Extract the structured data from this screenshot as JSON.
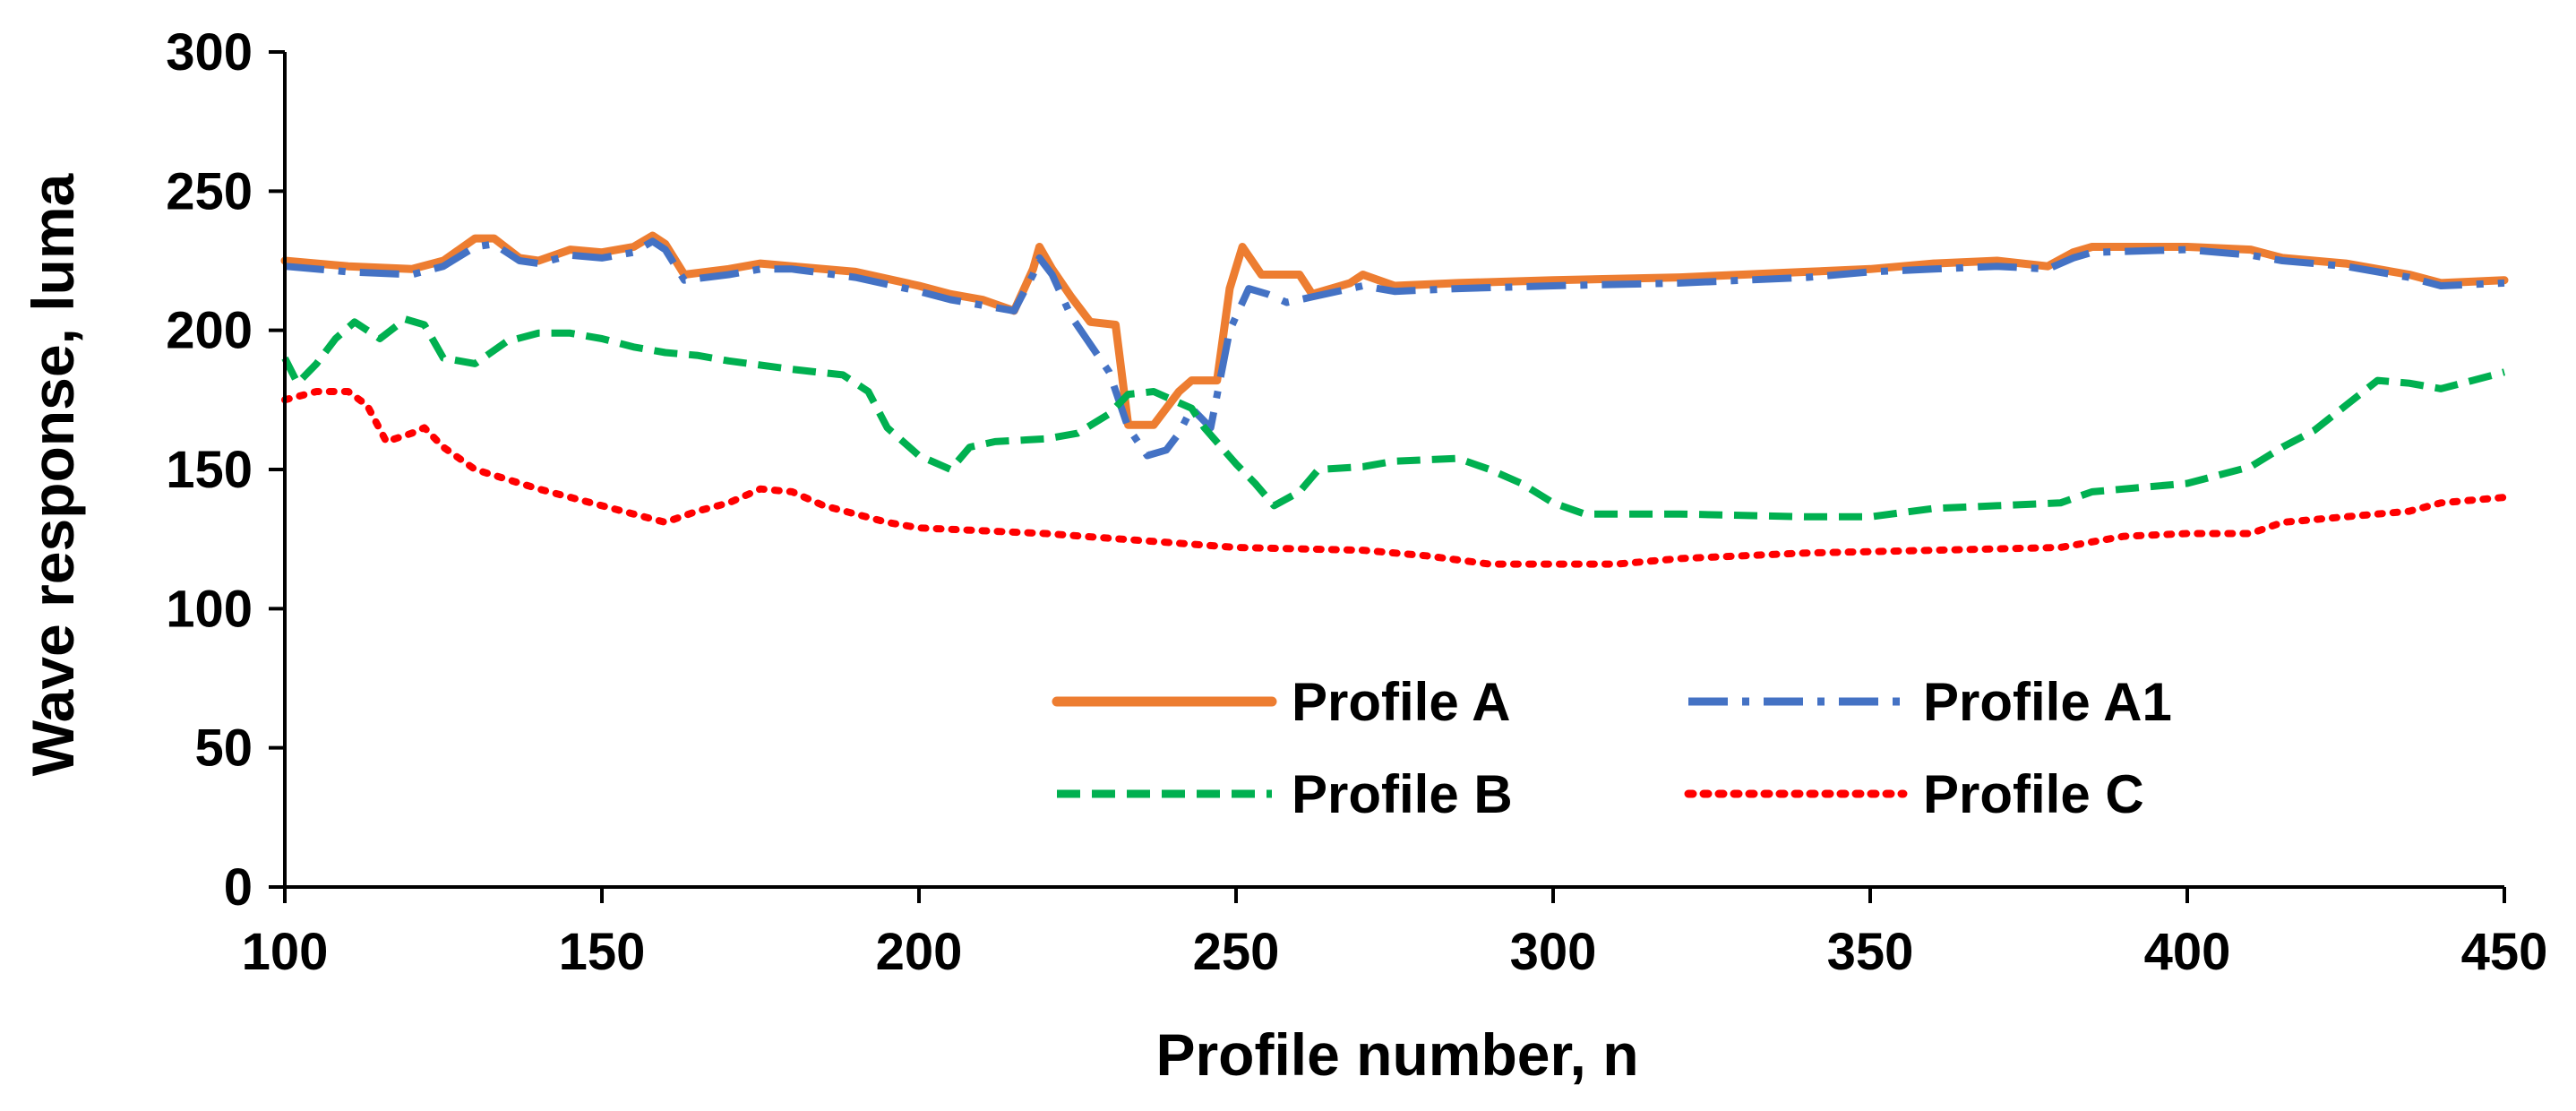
{
  "chart_data": {
    "type": "line",
    "title": "",
    "xlabel": "Profile number, n",
    "ylabel": "Wave response, luma",
    "xlim": [
      100,
      450
    ],
    "ylim": [
      0,
      300
    ],
    "xticks": [
      100,
      150,
      200,
      250,
      300,
      350,
      400,
      450
    ],
    "yticks": [
      0,
      50,
      100,
      150,
      200,
      250,
      300
    ],
    "grid": false,
    "legend_position": "lower-center-right",
    "series": [
      {
        "name": "Profile A",
        "color": "#ED7D31",
        "style": "solid",
        "points": [
          [
            100,
            225
          ],
          [
            110,
            223
          ],
          [
            120,
            222
          ],
          [
            125,
            225
          ],
          [
            130,
            233
          ],
          [
            133,
            233
          ],
          [
            137,
            226
          ],
          [
            140,
            225
          ],
          [
            145,
            229
          ],
          [
            150,
            228
          ],
          [
            155,
            230
          ],
          [
            158,
            234
          ],
          [
            160,
            231
          ],
          [
            163,
            220
          ],
          [
            170,
            222
          ],
          [
            175,
            224
          ],
          [
            180,
            223
          ],
          [
            190,
            221
          ],
          [
            200,
            216
          ],
          [
            205,
            213
          ],
          [
            210,
            211
          ],
          [
            215,
            207
          ],
          [
            218,
            222
          ],
          [
            219,
            230
          ],
          [
            221,
            222
          ],
          [
            224,
            212
          ],
          [
            227,
            203
          ],
          [
            231,
            202
          ],
          [
            233,
            166
          ],
          [
            237,
            166
          ],
          [
            241,
            178
          ],
          [
            243,
            182
          ],
          [
            247,
            182
          ],
          [
            249,
            215
          ],
          [
            251,
            230
          ],
          [
            254,
            220
          ],
          [
            260,
            220
          ],
          [
            262,
            213
          ],
          [
            268,
            217
          ],
          [
            270,
            220
          ],
          [
            275,
            216
          ],
          [
            285,
            217
          ],
          [
            300,
            218
          ],
          [
            320,
            219
          ],
          [
            340,
            221
          ],
          [
            350,
            222
          ],
          [
            360,
            224
          ],
          [
            370,
            225
          ],
          [
            378,
            223
          ],
          [
            382,
            228
          ],
          [
            385,
            230
          ],
          [
            400,
            230
          ],
          [
            410,
            229
          ],
          [
            415,
            226
          ],
          [
            425,
            224
          ],
          [
            435,
            220
          ],
          [
            440,
            217
          ],
          [
            450,
            218
          ]
        ]
      },
      {
        "name": "Profile A1",
        "color": "#4472C4",
        "style": "dash-dot",
        "points": [
          [
            100,
            223
          ],
          [
            110,
            221
          ],
          [
            120,
            220
          ],
          [
            125,
            223
          ],
          [
            130,
            230
          ],
          [
            133,
            231
          ],
          [
            137,
            225
          ],
          [
            140,
            224
          ],
          [
            145,
            227
          ],
          [
            150,
            226
          ],
          [
            155,
            228
          ],
          [
            158,
            232
          ],
          [
            160,
            229
          ],
          [
            163,
            218
          ],
          [
            170,
            220
          ],
          [
            175,
            222
          ],
          [
            180,
            222
          ],
          [
            190,
            219
          ],
          [
            200,
            214
          ],
          [
            205,
            211
          ],
          [
            210,
            209
          ],
          [
            215,
            207
          ],
          [
            218,
            220
          ],
          [
            219,
            226
          ],
          [
            221,
            220
          ],
          [
            224,
            205
          ],
          [
            227,
            195
          ],
          [
            230,
            185
          ],
          [
            233,
            165
          ],
          [
            236,
            155
          ],
          [
            239,
            157
          ],
          [
            241,
            163
          ],
          [
            243,
            172
          ],
          [
            246,
            165
          ],
          [
            249,
            200
          ],
          [
            252,
            215
          ],
          [
            255,
            213
          ],
          [
            258,
            210
          ],
          [
            262,
            212
          ],
          [
            268,
            215
          ],
          [
            270,
            216
          ],
          [
            275,
            214
          ],
          [
            285,
            215
          ],
          [
            300,
            216
          ],
          [
            320,
            217
          ],
          [
            340,
            219
          ],
          [
            350,
            221
          ],
          [
            360,
            222
          ],
          [
            370,
            223
          ],
          [
            378,
            222
          ],
          [
            382,
            226
          ],
          [
            385,
            228
          ],
          [
            400,
            229
          ],
          [
            410,
            227
          ],
          [
            415,
            225
          ],
          [
            425,
            223
          ],
          [
            435,
            219
          ],
          [
            440,
            216
          ],
          [
            450,
            217
          ]
        ]
      },
      {
        "name": "Profile B",
        "color": "#00B050",
        "style": "dashed",
        "points": [
          [
            100,
            190
          ],
          [
            102,
            181
          ],
          [
            105,
            188
          ],
          [
            108,
            197
          ],
          [
            111,
            203
          ],
          [
            115,
            197
          ],
          [
            119,
            204
          ],
          [
            122,
            202
          ],
          [
            125,
            190
          ],
          [
            130,
            188
          ],
          [
            135,
            196
          ],
          [
            140,
            199
          ],
          [
            145,
            199
          ],
          [
            150,
            197
          ],
          [
            155,
            194
          ],
          [
            160,
            192
          ],
          [
            165,
            191
          ],
          [
            170,
            189
          ],
          [
            180,
            186
          ],
          [
            188,
            184
          ],
          [
            192,
            178
          ],
          [
            195,
            165
          ],
          [
            200,
            155
          ],
          [
            205,
            150
          ],
          [
            208,
            158
          ],
          [
            212,
            160
          ],
          [
            220,
            161
          ],
          [
            225,
            163
          ],
          [
            230,
            170
          ],
          [
            233,
            177
          ],
          [
            237,
            178
          ],
          [
            243,
            172
          ],
          [
            245,
            165
          ],
          [
            250,
            152
          ],
          [
            253,
            145
          ],
          [
            256,
            137
          ],
          [
            260,
            142
          ],
          [
            263,
            150
          ],
          [
            270,
            151
          ],
          [
            275,
            153
          ],
          [
            285,
            154
          ],
          [
            290,
            150
          ],
          [
            295,
            145
          ],
          [
            300,
            138
          ],
          [
            305,
            134
          ],
          [
            320,
            134
          ],
          [
            340,
            133
          ],
          [
            350,
            133
          ],
          [
            360,
            136
          ],
          [
            370,
            137
          ],
          [
            380,
            138
          ],
          [
            385,
            142
          ],
          [
            400,
            145
          ],
          [
            410,
            151
          ],
          [
            415,
            158
          ],
          [
            420,
            164
          ],
          [
            425,
            173
          ],
          [
            430,
            182
          ],
          [
            435,
            181
          ],
          [
            440,
            179
          ],
          [
            450,
            185
          ]
        ]
      },
      {
        "name": "Profile C",
        "color": "#FF0000",
        "style": "dotted",
        "points": [
          [
            100,
            175
          ],
          [
            105,
            178
          ],
          [
            110,
            178
          ],
          [
            113,
            173
          ],
          [
            116,
            160
          ],
          [
            120,
            163
          ],
          [
            122,
            165
          ],
          [
            125,
            158
          ],
          [
            130,
            150
          ],
          [
            140,
            143
          ],
          [
            150,
            137
          ],
          [
            155,
            134
          ],
          [
            160,
            131
          ],
          [
            165,
            135
          ],
          [
            170,
            138
          ],
          [
            175,
            143
          ],
          [
            180,
            142
          ],
          [
            185,
            137
          ],
          [
            195,
            131
          ],
          [
            200,
            129
          ],
          [
            220,
            127
          ],
          [
            250,
            122
          ],
          [
            270,
            121
          ],
          [
            280,
            119
          ],
          [
            290,
            116
          ],
          [
            300,
            116
          ],
          [
            310,
            116
          ],
          [
            320,
            118
          ],
          [
            340,
            120
          ],
          [
            360,
            121
          ],
          [
            380,
            122
          ],
          [
            390,
            126
          ],
          [
            400,
            127
          ],
          [
            410,
            127
          ],
          [
            415,
            131
          ],
          [
            425,
            133
          ],
          [
            435,
            135
          ],
          [
            440,
            138
          ],
          [
            445,
            139
          ],
          [
            450,
            140
          ]
        ]
      }
    ]
  }
}
